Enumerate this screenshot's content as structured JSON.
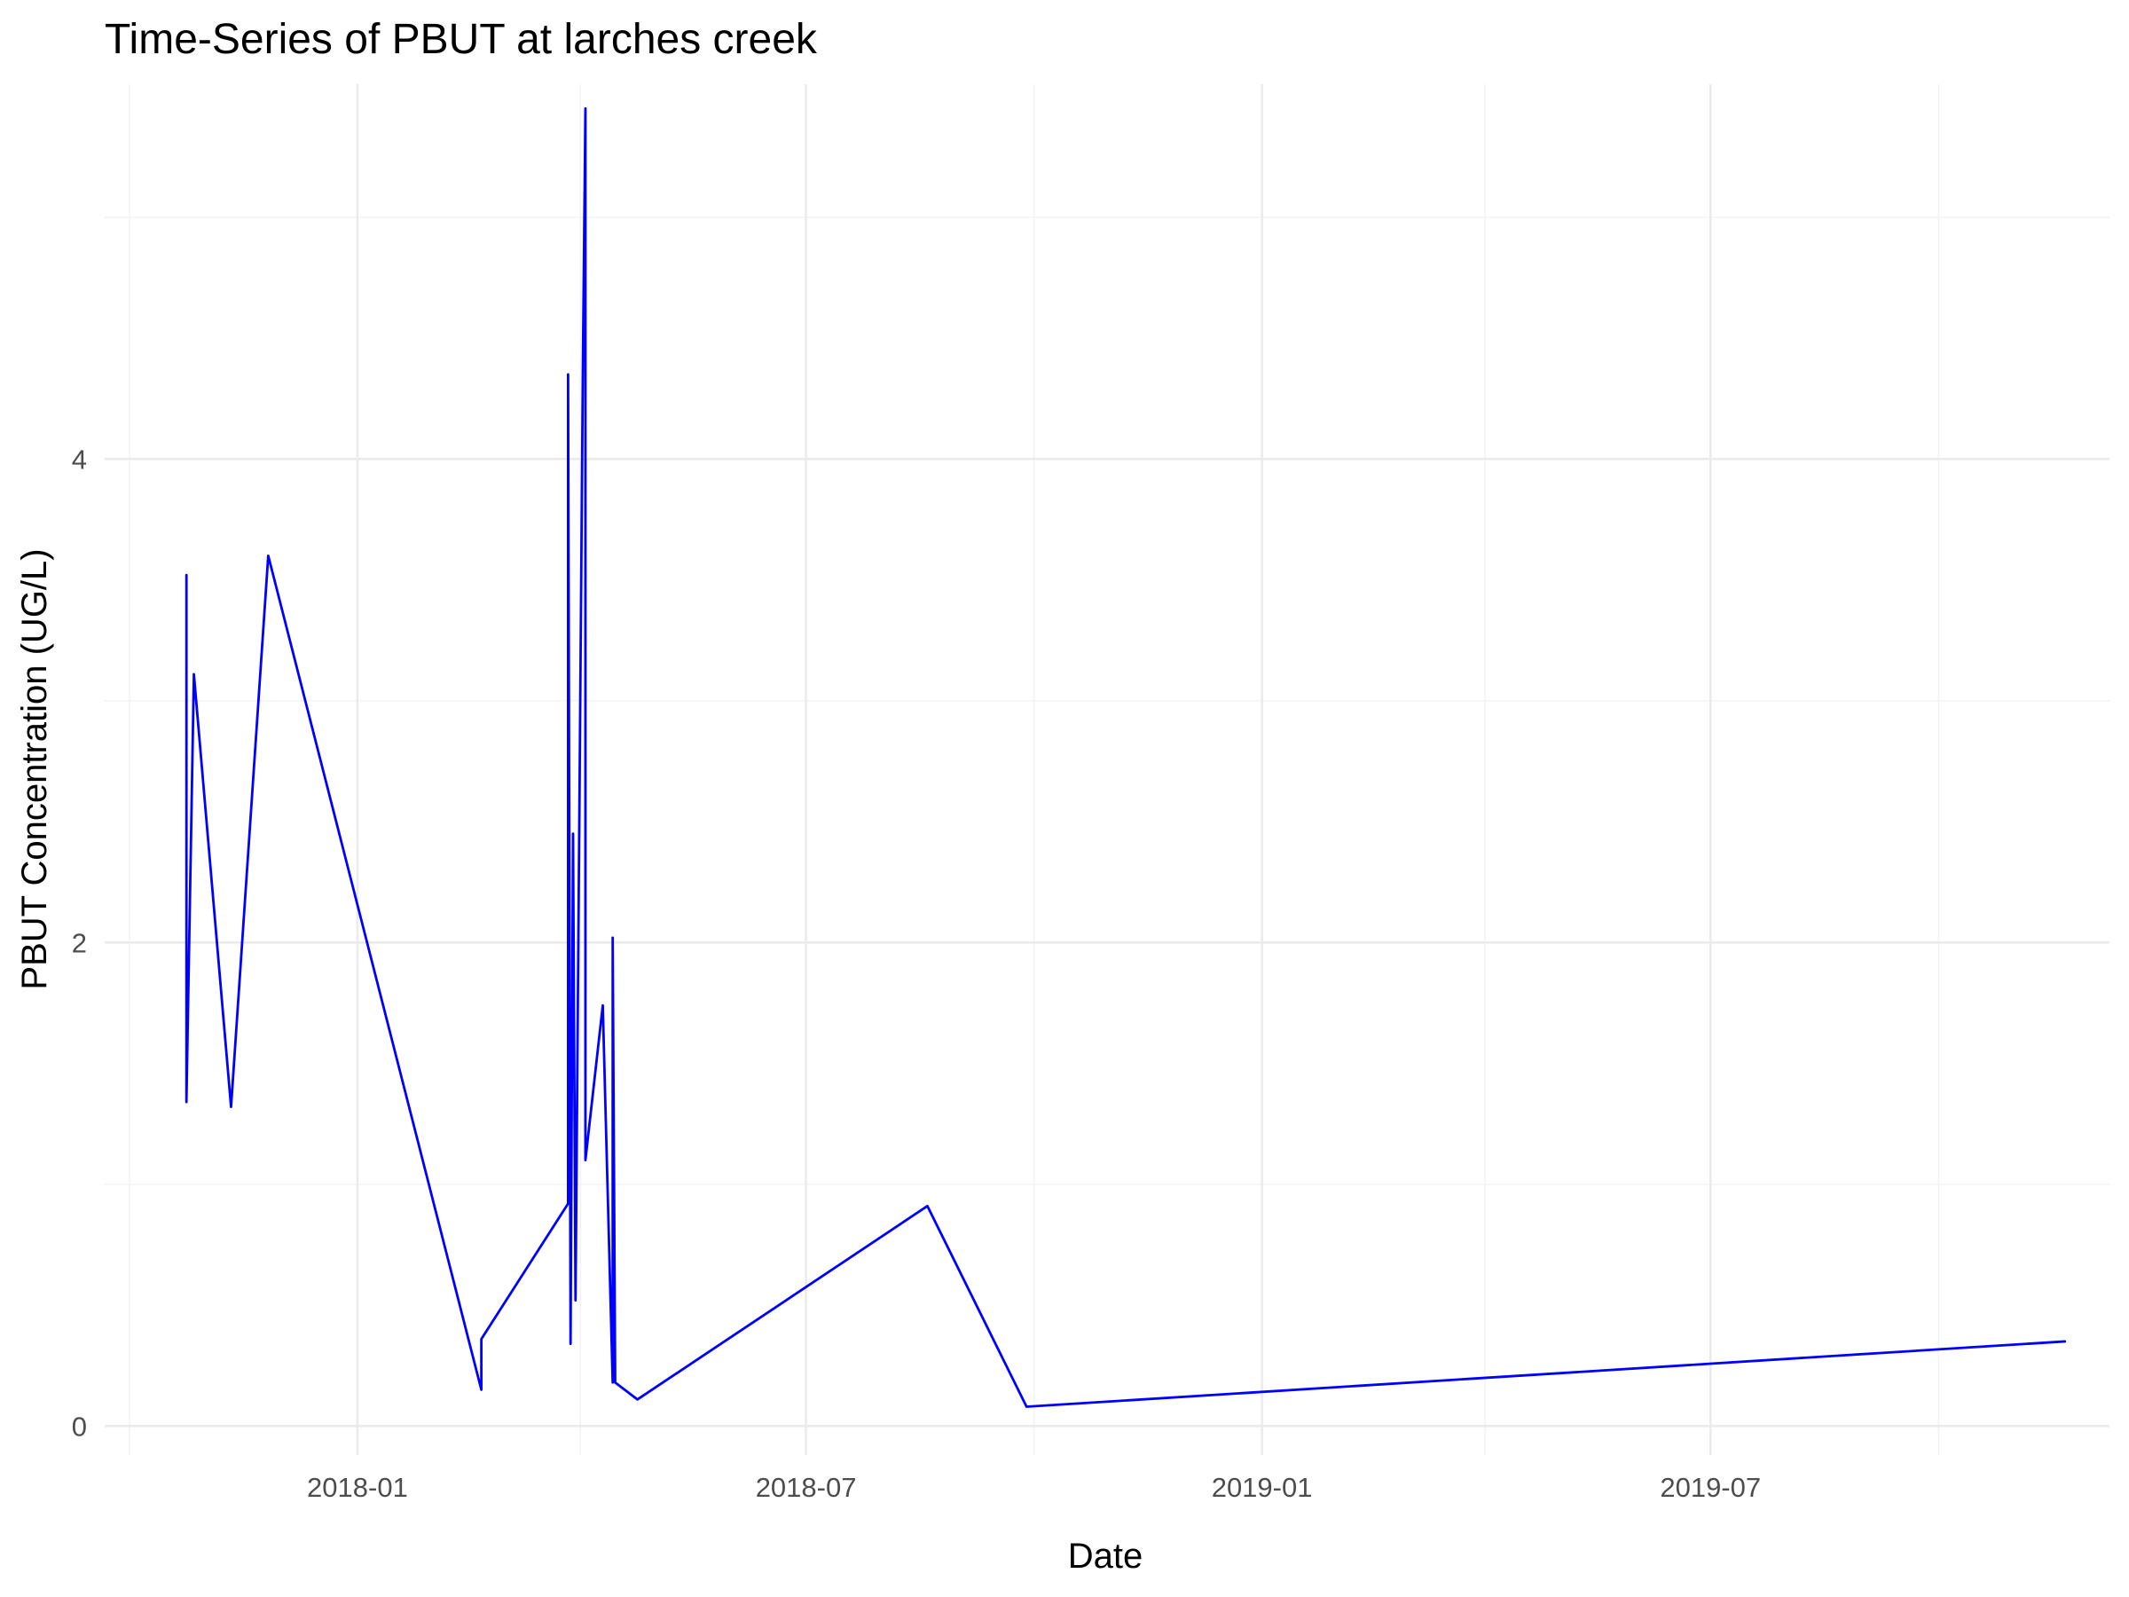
{
  "chart_data": {
    "type": "line",
    "title": "Time-Series of PBUT at larches creek",
    "xlabel": "Date",
    "ylabel": "PBUT Concentration (UG/L)",
    "x_scale": "date",
    "xlim": [
      "2017-09-21",
      "2019-12-09"
    ],
    "ylim": [
      -0.12,
      5.55
    ],
    "x_ticks": [
      "2018-01-01",
      "2018-07-01",
      "2019-01-01",
      "2019-07-01"
    ],
    "x_tick_labels": [
      "2018-01",
      "2018-07",
      "2019-01",
      "2019-07"
    ],
    "x_minor_ticks": [
      "2017-10-01",
      "2018-04-01",
      "2018-10-01",
      "2019-04-01",
      "2019-10-01"
    ],
    "y_ticks": [
      0,
      2,
      4
    ],
    "y_tick_labels": [
      "0",
      "2",
      "4"
    ],
    "y_minor_ticks": [
      1,
      3,
      5
    ],
    "grid": true,
    "legend": "none",
    "series": [
      {
        "color": "#0000ff",
        "points": [
          {
            "x": "2017-10-24",
            "y": 1.34
          },
          {
            "x": "2017-10-24",
            "y": 3.52
          },
          {
            "x": "2017-10-24",
            "y": 1.35
          },
          {
            "x": "2017-10-27",
            "y": 3.11
          },
          {
            "x": "2017-11-11",
            "y": 1.32
          },
          {
            "x": "2017-11-26",
            "y": 3.6
          },
          {
            "x": "2018-02-20",
            "y": 0.15
          },
          {
            "x": "2018-02-20",
            "y": 0.36
          },
          {
            "x": "2018-03-27",
            "y": 0.92
          },
          {
            "x": "2018-03-27",
            "y": 4.35
          },
          {
            "x": "2018-03-28",
            "y": 0.34
          },
          {
            "x": "2018-03-29",
            "y": 2.45
          },
          {
            "x": "2018-03-30",
            "y": 0.52
          },
          {
            "x": "2018-04-02",
            "y": 4.42
          },
          {
            "x": "2018-04-03",
            "y": 5.45
          },
          {
            "x": "2018-04-03",
            "y": 1.1
          },
          {
            "x": "2018-04-10",
            "y": 1.74
          },
          {
            "x": "2018-04-14",
            "y": 0.18
          },
          {
            "x": "2018-04-14",
            "y": 2.02
          },
          {
            "x": "2018-04-15",
            "y": 0.18
          },
          {
            "x": "2018-04-24",
            "y": 0.11
          },
          {
            "x": "2018-08-19",
            "y": 0.91
          },
          {
            "x": "2018-09-28",
            "y": 0.08
          },
          {
            "x": "2019-11-21",
            "y": 0.35
          }
        ]
      }
    ]
  }
}
